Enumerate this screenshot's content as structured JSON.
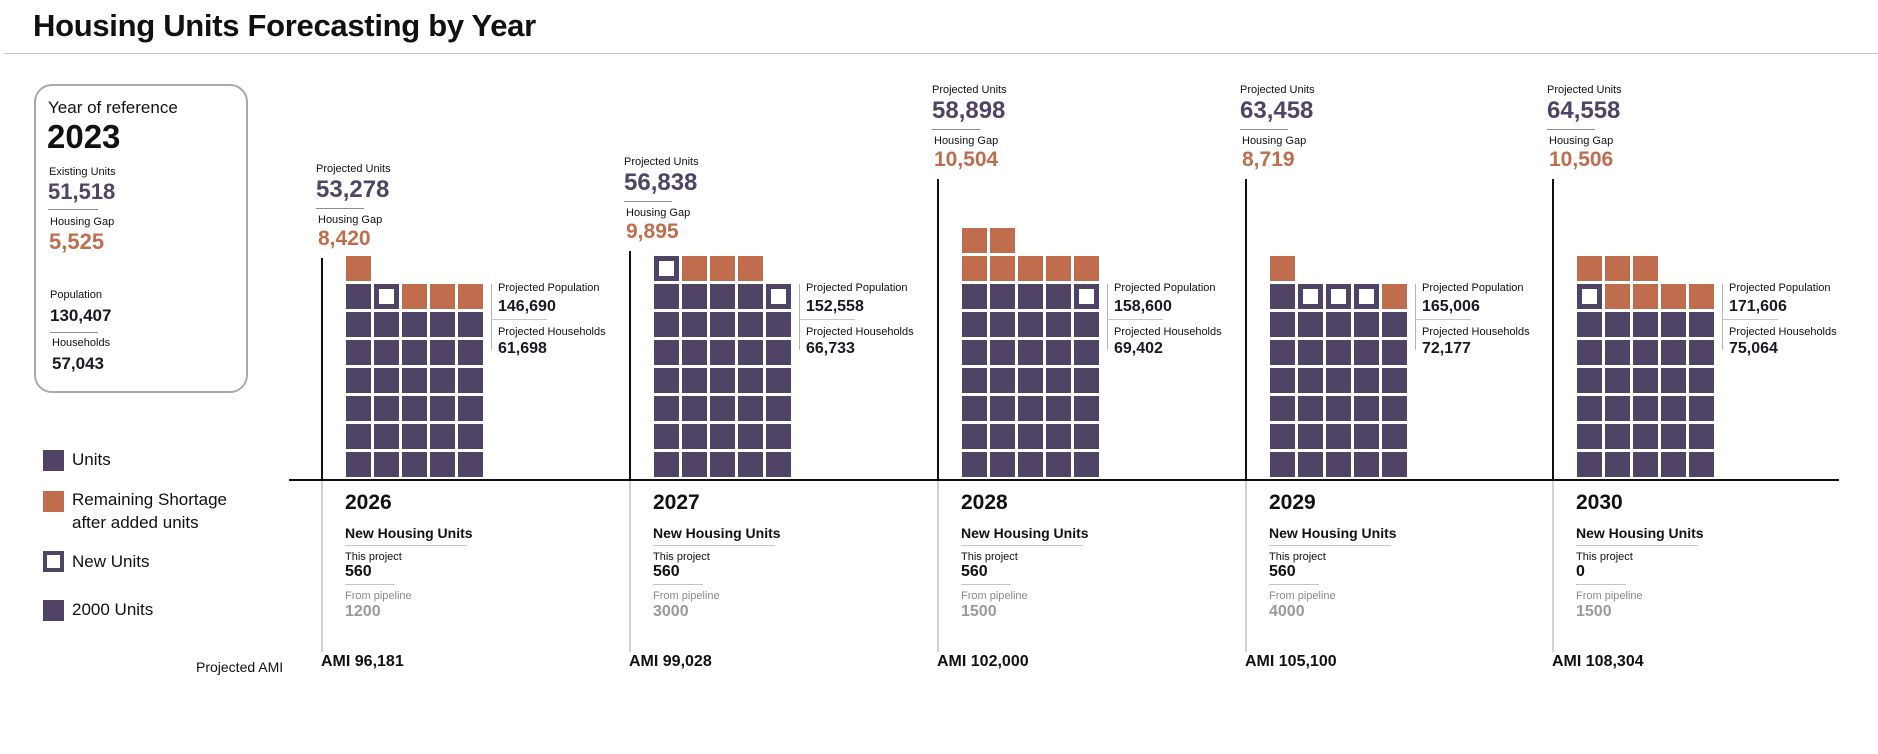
{
  "header": {
    "title": "Housing Units Forecasting by Year"
  },
  "reference": {
    "label": "Year of reference",
    "year": "2023",
    "existing_units_label": "Existing Units",
    "existing_units": "51,518",
    "housing_gap_label": "Housing Gap",
    "housing_gap": "5,525",
    "population_label": "Population",
    "population": "130,407",
    "households_label": "Households",
    "households": "57,043"
  },
  "legend": {
    "items": [
      {
        "key": "units",
        "label": "Units"
      },
      {
        "key": "shortage",
        "label_line1": "Remaining Shortage",
        "label_line2": "after added units"
      },
      {
        "key": "new",
        "label": "New Units"
      },
      {
        "key": "scale",
        "label": "2000 Units"
      }
    ],
    "ami_label": "Projected AMI"
  },
  "colors": {
    "units": "#4f4466",
    "shortage": "#c06d4e",
    "new_fill": "#ffffff",
    "axis": "#111111"
  },
  "labels": {
    "projected_units": "Projected  Units",
    "housing_gap": "Housing Gap",
    "projected_population": "Projected  Population",
    "projected_households": "Projected  Households",
    "new_housing_units": "New Housing Units",
    "this_project": "This project",
    "from_pipeline": "From pipeline"
  },
  "chart_data": {
    "type": "table",
    "title": "Housing Units Forecasting by Year",
    "unit_per_block": 2000,
    "block_legend": {
      "U": "Units",
      "O": "Remaining Shortage after added units",
      "N": "New Units"
    },
    "years": [
      {
        "year": "2026",
        "projected_units": "53,278",
        "housing_gap": "8,420",
        "projected_population": "146,690",
        "projected_households": "61,698",
        "this_project": "560",
        "from_pipeline": "1200",
        "ami": "AMI 96,181",
        "block_rows_bottom_up": [
          [
            "U",
            "U",
            "U",
            "U",
            "U"
          ],
          [
            "U",
            "U",
            "U",
            "U",
            "U"
          ],
          [
            "U",
            "U",
            "U",
            "U",
            "U"
          ],
          [
            "U",
            "U",
            "U",
            "U",
            "U"
          ],
          [
            "U",
            "U",
            "U",
            "U",
            "U"
          ],
          [
            "U",
            "U",
            "U",
            "U",
            "U"
          ],
          [
            "U",
            "N",
            "O",
            "O",
            "O"
          ],
          [
            "O"
          ]
        ]
      },
      {
        "year": "2027",
        "projected_units": "56,838",
        "housing_gap": "9,895",
        "projected_population": "152,558",
        "projected_households": "66,733",
        "this_project": "560",
        "from_pipeline": "3000",
        "ami": "AMI 99,028",
        "block_rows_bottom_up": [
          [
            "U",
            "U",
            "U",
            "U",
            "U"
          ],
          [
            "U",
            "U",
            "U",
            "U",
            "U"
          ],
          [
            "U",
            "U",
            "U",
            "U",
            "U"
          ],
          [
            "U",
            "U",
            "U",
            "U",
            "U"
          ],
          [
            "U",
            "U",
            "U",
            "U",
            "U"
          ],
          [
            "U",
            "U",
            "U",
            "U",
            "U"
          ],
          [
            "U",
            "U",
            "U",
            "U",
            "N"
          ],
          [
            "N",
            "O",
            "O",
            "O"
          ]
        ]
      },
      {
        "year": "2028",
        "projected_units": "58,898",
        "housing_gap": "10,504",
        "projected_population": "158,600",
        "projected_households": "69,402",
        "this_project": "560",
        "from_pipeline": "1500",
        "ami": "AMI 102,000",
        "block_rows_bottom_up": [
          [
            "U",
            "U",
            "U",
            "U",
            "U"
          ],
          [
            "U",
            "U",
            "U",
            "U",
            "U"
          ],
          [
            "U",
            "U",
            "U",
            "U",
            "U"
          ],
          [
            "U",
            "U",
            "U",
            "U",
            "U"
          ],
          [
            "U",
            "U",
            "U",
            "U",
            "U"
          ],
          [
            "U",
            "U",
            "U",
            "U",
            "U"
          ],
          [
            "U",
            "U",
            "U",
            "U",
            "N"
          ],
          [
            "O",
            "O",
            "O",
            "O",
            "O"
          ],
          [
            "O",
            "O"
          ]
        ]
      },
      {
        "year": "2029",
        "projected_units": "63,458",
        "housing_gap": "8,719",
        "projected_population": "165,006",
        "projected_households": "72,177",
        "this_project": "560",
        "from_pipeline": "4000",
        "ami": "AMI 105,100",
        "block_rows_bottom_up": [
          [
            "U",
            "U",
            "U",
            "U",
            "U"
          ],
          [
            "U",
            "U",
            "U",
            "U",
            "U"
          ],
          [
            "U",
            "U",
            "U",
            "U",
            "U"
          ],
          [
            "U",
            "U",
            "U",
            "U",
            "U"
          ],
          [
            "U",
            "U",
            "U",
            "U",
            "U"
          ],
          [
            "U",
            "U",
            "U",
            "U",
            "U"
          ],
          [
            "U",
            "N",
            "N",
            "N",
            "O"
          ],
          [
            "O"
          ]
        ]
      },
      {
        "year": "2030",
        "projected_units": "64,558",
        "housing_gap": "10,506",
        "projected_population": "171,606",
        "projected_households": "75,064",
        "this_project": "0",
        "from_pipeline": "1500",
        "ami": "AMI 108,304",
        "block_rows_bottom_up": [
          [
            "U",
            "U",
            "U",
            "U",
            "U"
          ],
          [
            "U",
            "U",
            "U",
            "U",
            "U"
          ],
          [
            "U",
            "U",
            "U",
            "U",
            "U"
          ],
          [
            "U",
            "U",
            "U",
            "U",
            "U"
          ],
          [
            "U",
            "U",
            "U",
            "U",
            "U"
          ],
          [
            "U",
            "U",
            "U",
            "U",
            "U"
          ],
          [
            "N",
            "O",
            "O",
            "O",
            "O"
          ],
          [
            "O",
            "O",
            "O"
          ]
        ]
      }
    ]
  }
}
